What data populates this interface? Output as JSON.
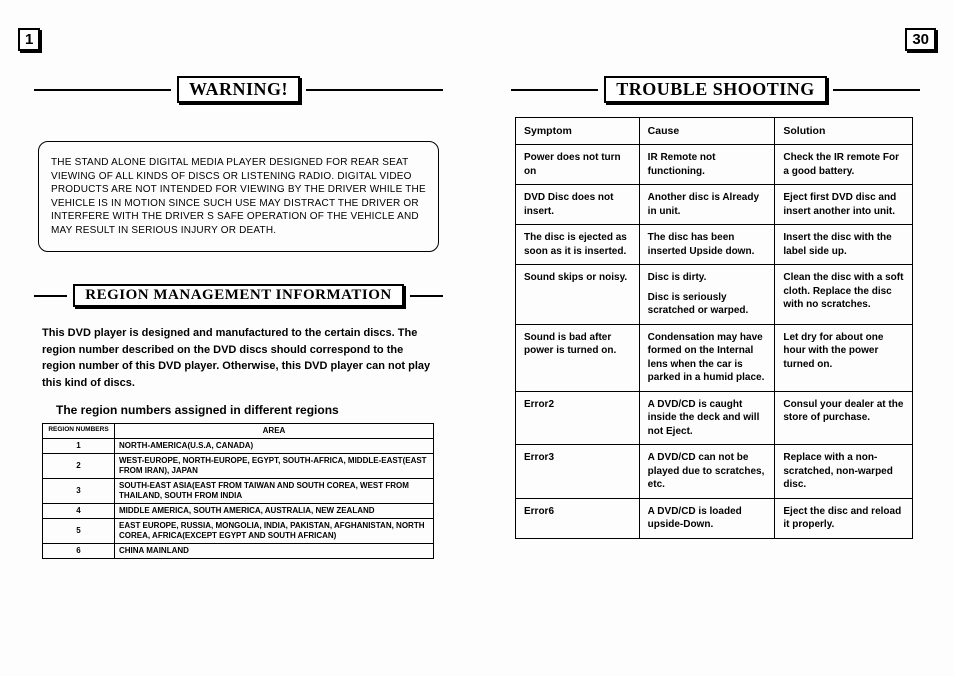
{
  "pageLeftNum": "1",
  "pageRightNum": "30",
  "warningTitle": "WARNING!",
  "warningBody": "THE STAND ALONE DIGITAL MEDIA PLAYER DESIGNED FOR REAR SEAT VIEWING OF ALL KINDS OF DISCS OR LISTENING RADIO. DIGITAL VIDEO PRODUCTS ARE NOT INTENDED FOR VIEWING BY THE DRIVER WHILE THE VEHICLE IS IN MOTION SINCE SUCH USE MAY DISTRACT THE DRIVER OR INTERFERE WITH THE DRIVER S SAFE OPERATION OF THE VEHICLE AND MAY RESULT IN SERIOUS INJURY OR DEATH.",
  "regionTitle": "REGION MANAGEMENT INFORMATION",
  "regionDesc": "This DVD player is designed and manufactured to the certain discs. The region number described on the DVD discs should correspond to the region number of this DVD player. Otherwise, this DVD player can not play this kind of discs.",
  "regionCaption": "The region numbers assigned in different regions",
  "regionHeaders": {
    "col1": "REGION NUMBERS",
    "col2": "AREA"
  },
  "regionRows": [
    {
      "num": "1",
      "area": "NORTH-AMERICA(U.S.A, CANADA)"
    },
    {
      "num": "2",
      "area": "WEST-EUROPE, NORTH-EUROPE, EGYPT, SOUTH-AFRICA, MIDDLE-EAST(EAST FROM IRAN), JAPAN"
    },
    {
      "num": "3",
      "area": "SOUTH-EAST ASIA(EAST FROM TAIWAN AND SOUTH COREA, WEST FROM THAILAND, SOUTH FROM INDIA"
    },
    {
      "num": "4",
      "area": "MIDDLE AMERICA, SOUTH AMERICA, AUSTRALIA, NEW ZEALAND"
    },
    {
      "num": "5",
      "area": "EAST EUROPE, RUSSIA, MONGOLIA, INDIA, PAKISTAN, AFGHANISTAN, NORTH COREA, AFRICA(EXCEPT EGYPT AND SOUTH AFRICAN)"
    },
    {
      "num": "6",
      "area": "CHINA MAINLAND"
    }
  ],
  "tsTitle": "TROUBLE SHOOTING",
  "tsHeaders": {
    "symptom": "Symptom",
    "cause": "Cause",
    "solution": "Solution"
  },
  "tsRows": [
    {
      "s": "Power does not turn on",
      "c": "IR Remote not functioning.",
      "sol": "Check the IR remote For a good battery."
    },
    {
      "s": "DVD Disc does not insert.",
      "c": "Another disc is Already in unit.",
      "sol": "Eject first DVD disc and insert another into unit."
    },
    {
      "s": "The disc is ejected as soon as it is inserted.",
      "c": "The disc has been inserted Upside down.",
      "sol": "Insert the disc with the label side up."
    },
    {
      "s": "Sound skips or noisy.",
      "c": "Disc is dirty.\nDisc is seriously scratched or warped.",
      "sol": "Clean the disc with a soft cloth. Replace the disc with no scratches."
    },
    {
      "s": "Sound is bad after power is turned on.",
      "c": "Condensation may have formed on the Internal lens when the car is parked in a humid place.",
      "sol": "Let dry for about one hour with the power turned on."
    },
    {
      "s": "Error2",
      "c": "A DVD/CD is caught inside the deck and will not Eject.",
      "sol": "Consul your dealer at the store of purchase."
    },
    {
      "s": "Error3",
      "c": "A DVD/CD can not be played due to scratches, etc.",
      "sol": "Replace with a non-scratched, non-warped disc."
    },
    {
      "s": "Error6",
      "c": "A DVD/CD is loaded upside-Down.",
      "sol": "Eject the disc and reload it properly."
    }
  ]
}
